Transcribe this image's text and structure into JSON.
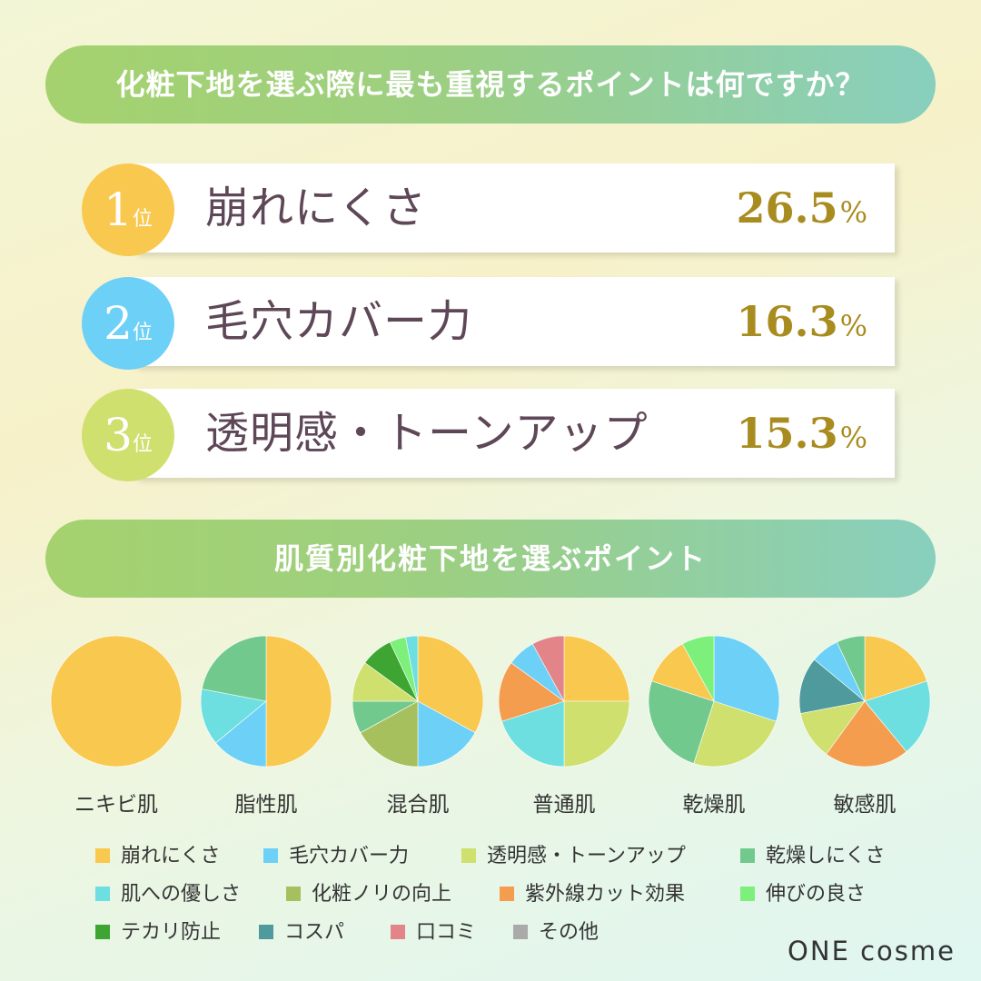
{
  "header": {
    "question": "化粧下地を選ぶ際に最も重視するポイントは何ですか？"
  },
  "ranking": [
    {
      "rank": "1",
      "suffix": "位",
      "label": "崩れにくさ",
      "value": "26.5",
      "unit": "%",
      "circle_color": "#f9c84e"
    },
    {
      "rank": "2",
      "suffix": "位",
      "label": "毛穴カバー力",
      "value": "16.3",
      "unit": "%",
      "circle_color": "#6dd0f6"
    },
    {
      "rank": "3",
      "suffix": "位",
      "label": "透明感・トーンアップ",
      "value": "15.3",
      "unit": "%",
      "circle_color": "#cfe06f"
    }
  ],
  "section2": {
    "title": "肌質別化粧下地を選ぶポイント"
  },
  "chart_data": [
    {
      "type": "pie",
      "title": "ニキビ肌",
      "slices": [
        {
          "category": "崩れにくさ",
          "value": 100
        }
      ]
    },
    {
      "type": "pie",
      "title": "脂性肌",
      "slices": [
        {
          "category": "崩れにくさ",
          "value": 50
        },
        {
          "category": "毛穴カバー力",
          "value": 14
        },
        {
          "category": "肌への優しさ",
          "value": 14
        },
        {
          "category": "乾燥しにくさ",
          "value": 22
        }
      ]
    },
    {
      "type": "pie",
      "title": "混合肌",
      "slices": [
        {
          "category": "崩れにくさ",
          "value": 33
        },
        {
          "category": "毛穴カバー力",
          "value": 17
        },
        {
          "category": "化粧ノリの向上",
          "value": 17
        },
        {
          "category": "乾燥しにくさ",
          "value": 8
        },
        {
          "category": "透明感・トーンアップ",
          "value": 10
        },
        {
          "category": "テカリ防止",
          "value": 8
        },
        {
          "category": "伸びの良さ",
          "value": 4
        },
        {
          "category": "肌への優しさ",
          "value": 3
        }
      ]
    },
    {
      "type": "pie",
      "title": "普通肌",
      "slices": [
        {
          "category": "崩れにくさ",
          "value": 25
        },
        {
          "category": "透明感・トーンアップ",
          "value": 25
        },
        {
          "category": "肌への優しさ",
          "value": 20
        },
        {
          "category": "紫外線カット効果",
          "value": 15
        },
        {
          "category": "毛穴カバー力",
          "value": 7
        },
        {
          "category": "口コミ",
          "value": 8
        }
      ]
    },
    {
      "type": "pie",
      "title": "乾燥肌",
      "slices": [
        {
          "category": "毛穴カバー力",
          "value": 30
        },
        {
          "category": "透明感・トーンアップ",
          "value": 25
        },
        {
          "category": "乾燥しにくさ",
          "value": 25
        },
        {
          "category": "崩れにくさ",
          "value": 12
        },
        {
          "category": "伸びの良さ",
          "value": 8
        }
      ]
    },
    {
      "type": "pie",
      "title": "敏感肌",
      "slices": [
        {
          "category": "崩れにくさ",
          "value": 20
        },
        {
          "category": "肌への優しさ",
          "value": 19
        },
        {
          "category": "紫外線カット効果",
          "value": 21
        },
        {
          "category": "透明感・トーンアップ",
          "value": 12
        },
        {
          "category": "コスパ",
          "value": 14
        },
        {
          "category": "毛穴カバー力",
          "value": 7
        },
        {
          "category": "乾燥しにくさ",
          "value": 7
        }
      ]
    }
  ],
  "legend": [
    {
      "label": "崩れにくさ",
      "color": "#f9c84e"
    },
    {
      "label": "毛穴カバー力",
      "color": "#6dd0f6"
    },
    {
      "label": "透明感・トーンアップ",
      "color": "#cfe06f"
    },
    {
      "label": "乾燥しにくさ",
      "color": "#72c98e"
    },
    {
      "label": "肌への優しさ",
      "color": "#6ddfe0"
    },
    {
      "label": "化粧ノリの向上",
      "color": "#a5c05c"
    },
    {
      "label": "紫外線カット効果",
      "color": "#f59d4e"
    },
    {
      "label": "伸びの良さ",
      "color": "#7cf07a"
    },
    {
      "label": "テカリ防止",
      "color": "#3ea533"
    },
    {
      "label": "コスパ",
      "color": "#4f9a9c"
    },
    {
      "label": "口コミ",
      "color": "#e38489"
    },
    {
      "label": "その他",
      "color": "#aaaaaa"
    }
  ],
  "brand": {
    "name": "ONE cosme"
  }
}
